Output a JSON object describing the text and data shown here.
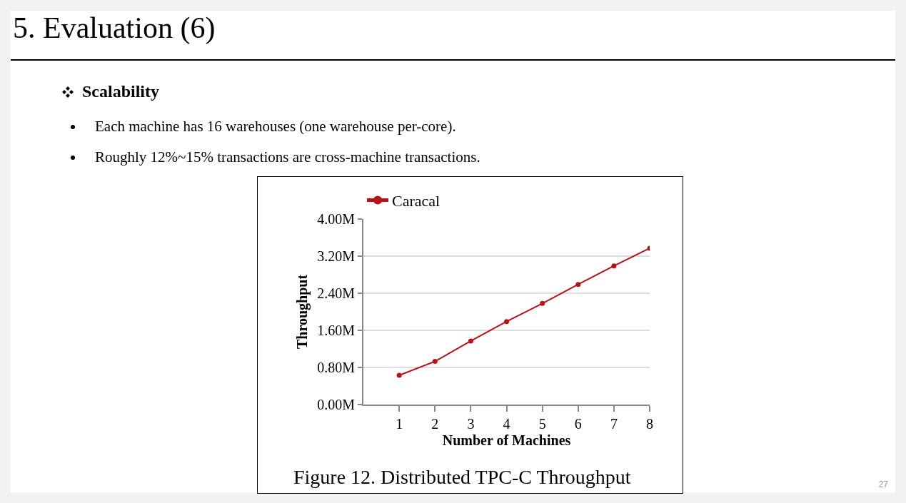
{
  "chart_data": {
    "type": "line",
    "title": "5. Evaluation (6)",
    "subtitle": "Scalability",
    "annotations": [
      "Each machine has 16 warehouses (one warehouse per-core).",
      "Roughly 12%~15% transactions are cross-machine transactions.",
      "Figure 12. Distributed TPC-C Throughput",
      "27"
    ],
    "xlabel": "Number of Machines",
    "ylabel": "Throughput",
    "x": [
      1,
      2,
      3,
      4,
      5,
      6,
      7,
      8
    ],
    "series": [
      {
        "name": "Caracal",
        "color": "#b5121b",
        "values": [
          0.63,
          0.93,
          1.37,
          1.79,
          2.18,
          2.59,
          2.99,
          3.37
        ]
      }
    ],
    "xlim": [
      0,
      8
    ],
    "xticks": [
      1,
      2,
      3,
      4,
      5,
      6,
      7,
      8
    ],
    "ylim": [
      0,
      4
    ],
    "yticks": [
      {
        "value": 0,
        "label": "0.00M"
      },
      {
        "value": 0.8,
        "label": "0.80M"
      },
      {
        "value": 1.6,
        "label": "1.60M"
      },
      {
        "value": 2.4,
        "label": "2.40M"
      },
      {
        "value": 3.2,
        "label": "3.20M"
      },
      {
        "value": 4,
        "label": "4.00M"
      }
    ],
    "grid": "y",
    "legend": "top left",
    "marker": "circle",
    "line_style": "solid"
  }
}
